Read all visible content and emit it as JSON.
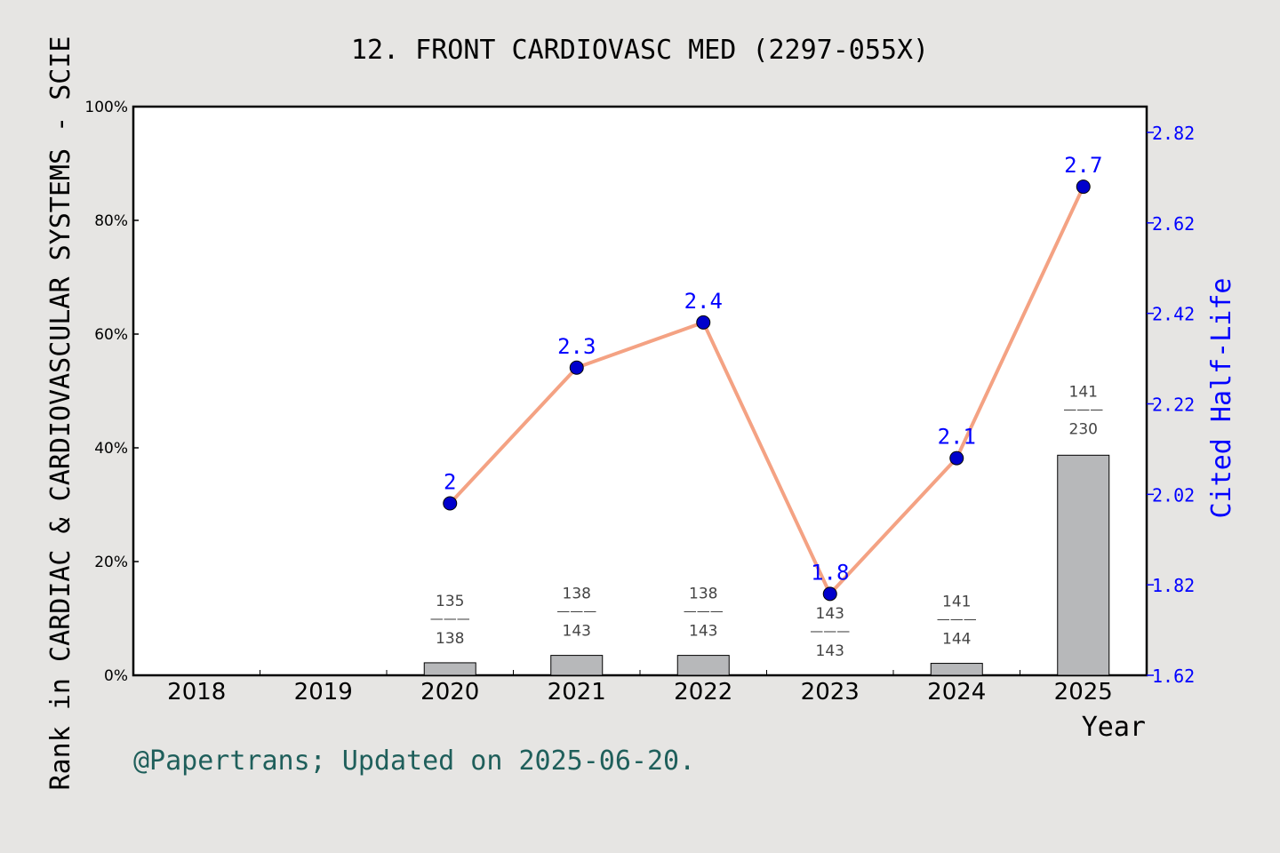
{
  "chart_data": {
    "type": "bar",
    "title": "12. FRONT CARDIOVASC MED (2297-055X)",
    "xlabel": "Year",
    "ylabel": "Rank in CARDIAC & CARDIOVASCULAR SYSTEMS - SCIE",
    "y2label": "Cited Half-Life",
    "categories": [
      "2018",
      "2019",
      "2020",
      "2021",
      "2022",
      "2023",
      "2024",
      "2025"
    ],
    "ylim": [
      0,
      100
    ],
    "yticks": [
      "0%",
      "20%",
      "40%",
      "60%",
      "80%",
      "100%"
    ],
    "y2lim": [
      1.62,
      2.877
    ],
    "y2ticks": [
      "1.62",
      "1.82",
      "2.02",
      "2.22",
      "2.42",
      "2.62",
      "2.82"
    ],
    "bars": [
      {
        "year": "2018",
        "value": null,
        "rank": "",
        "total": ""
      },
      {
        "year": "2019",
        "value": null,
        "rank": "",
        "total": ""
      },
      {
        "year": "2020",
        "value": 2.2,
        "rank": "135",
        "total": "138"
      },
      {
        "year": "2021",
        "value": 3.5,
        "rank": "138",
        "total": "143"
      },
      {
        "year": "2022",
        "value": 3.5,
        "rank": "138",
        "total": "143"
      },
      {
        "year": "2023",
        "value": 0,
        "rank": "143",
        "total": "143"
      },
      {
        "year": "2024",
        "value": 2.1,
        "rank": "141",
        "total": "144"
      },
      {
        "year": "2025",
        "value": 38.7,
        "rank": "141",
        "total": "230"
      }
    ],
    "line": {
      "name": "Cited Half-Life",
      "points": [
        {
          "year": "2020",
          "value": 2.0,
          "label": "2"
        },
        {
          "year": "2021",
          "value": 2.3,
          "label": "2.3"
        },
        {
          "year": "2022",
          "value": 2.4,
          "label": "2.4"
        },
        {
          "year": "2023",
          "value": 1.8,
          "label": "1.8"
        },
        {
          "year": "2024",
          "value": 2.1,
          "label": "2.1"
        },
        {
          "year": "2025",
          "value": 2.7,
          "label": "2.7"
        }
      ]
    },
    "grid": false
  },
  "footer": "@Papertrans; Updated on 2025-06-20.",
  "colors": {
    "background": "#e6e5e3",
    "plot": "#ffffff",
    "bar": "#b7b8ba",
    "line": "#f4a283",
    "marker": "#0000cc",
    "right_axis": "#0000ff",
    "footer": "#1f5f5b"
  }
}
